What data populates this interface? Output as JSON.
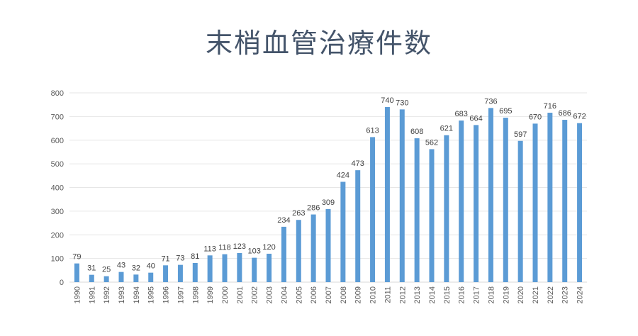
{
  "chart_data": {
    "type": "bar",
    "title": "末梢血管治療件数",
    "xlabel": "",
    "ylabel": "",
    "ylim": [
      0,
      800
    ],
    "yticks": [
      0,
      100,
      200,
      300,
      400,
      500,
      600,
      700,
      800
    ],
    "grid": true,
    "legend": "none",
    "bar_color": "#5b9bd5",
    "categories": [
      "1990",
      "1991",
      "1992",
      "1993",
      "1994",
      "1995",
      "1996",
      "1997",
      "1998",
      "1999",
      "2000",
      "2001",
      "2002",
      "2003",
      "2004",
      "2005",
      "2006",
      "2007",
      "2008",
      "2009",
      "2010",
      "2011",
      "2012",
      "2013",
      "2014",
      "2015",
      "2016",
      "2017",
      "2018",
      "2019",
      "2020",
      "2021",
      "2022",
      "2023",
      "2024"
    ],
    "values": [
      79,
      31,
      25,
      43,
      32,
      40,
      71,
      73,
      81,
      113,
      118,
      123,
      103,
      120,
      234,
      263,
      286,
      309,
      424,
      473,
      613,
      740,
      730,
      608,
      562,
      621,
      683,
      664,
      736,
      695,
      597,
      670,
      716,
      686,
      672
    ]
  }
}
